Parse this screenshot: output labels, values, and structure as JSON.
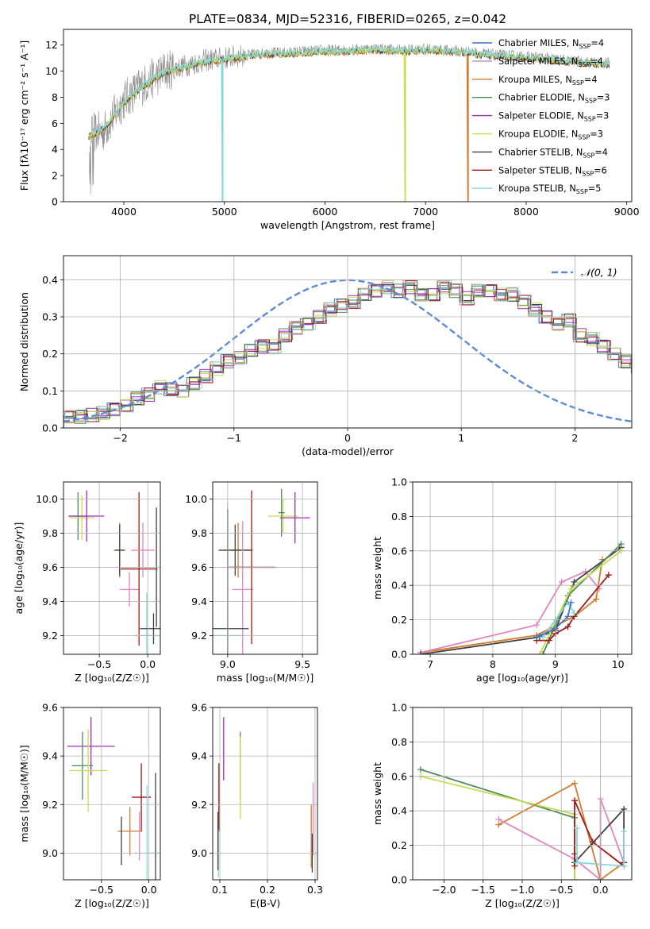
{
  "figure_title": "PLATE=0834, MJD=52316, FIBERID=0265, z=0.042",
  "colors": {
    "chabrier_miles": "#4472c4",
    "salpeter_miles": "#b48ccc",
    "kroupa_miles": "#d07c2c",
    "chabrier_elodie": "#4f8a5a",
    "salpeter_elodie": "#a12bbd",
    "kroupa_elodie": "#c8dc50",
    "chabrier_stelib": "#404040",
    "salpeter_stelib": "#a01818",
    "kroupa_stelib": "#86d8dc",
    "pink": "#e285c0",
    "data": "#8a8a8a",
    "normal_curve": "#5b8bd6",
    "grid": "#b0b0b0"
  },
  "chart_data": [
    {
      "id": "spectrum",
      "type": "line",
      "xlabel": "wavelength [Angstrom, rest frame]",
      "ylabel": "Flux [fλ10⁻¹⁷ erg cm⁻² s⁻¹ A⁻¹]",
      "xlim": [
        3400,
        9050
      ],
      "ylim": [
        0,
        13.2
      ],
      "xticks": [
        "4000",
        "5000",
        "6000",
        "7000",
        "8000",
        "9000"
      ],
      "yticks": [
        "0",
        "2",
        "4",
        "6",
        "8",
        "10",
        "12"
      ],
      "x": [
        3650,
        3800,
        4000,
        4200,
        4400,
        4600,
        4800,
        5000,
        5200,
        5400,
        5600,
        5800,
        6000,
        6200,
        6400,
        6600,
        6800,
        7000,
        7200,
        7400,
        7600,
        7800,
        8000,
        8200,
        8400,
        8600,
        8800
      ],
      "data_y": [
        5.2,
        5.4,
        7.8,
        9.0,
        10.0,
        10.4,
        10.8,
        11.0,
        11.2,
        11.4,
        11.4,
        11.5,
        11.6,
        11.6,
        11.7,
        11.7,
        11.6,
        11.7,
        11.6,
        11.5,
        11.3,
        11.2,
        11.1,
        11.0,
        10.8,
        10.7,
        10.6
      ],
      "model_y": [
        5.0,
        5.6,
        7.6,
        8.9,
        9.9,
        10.3,
        10.7,
        10.9,
        11.1,
        11.3,
        11.3,
        11.4,
        11.5,
        11.5,
        11.6,
        11.6,
        11.5,
        11.6,
        11.5,
        11.4,
        11.2,
        11.1,
        11.0,
        10.9,
        10.7,
        10.6,
        10.5
      ],
      "legend_loc": "right",
      "legend": [
        {
          "key": "chabrier_miles",
          "text": "Chabrier MILES, N",
          "sub": "SSP",
          "tail": "=4"
        },
        {
          "key": "salpeter_miles",
          "text": "Salpeter MILES, N",
          "sub": "SSP",
          "tail": "=4"
        },
        {
          "key": "kroupa_miles",
          "text": "Kroupa MILES, N",
          "sub": "SSP",
          "tail": "=4"
        },
        {
          "key": "chabrier_elodie",
          "text": "Chabrier ELODIE, N",
          "sub": "SSP",
          "tail": "=3"
        },
        {
          "key": "salpeter_elodie",
          "text": "Salpeter ELODIE, N",
          "sub": "SSP",
          "tail": "=3"
        },
        {
          "key": "kroupa_elodie",
          "text": "Kroupa ELODIE, N",
          "sub": "SSP",
          "tail": "=3"
        },
        {
          "key": "chabrier_stelib",
          "text": "Chabrier STELIB, N",
          "sub": "SSP",
          "tail": "=4"
        },
        {
          "key": "salpeter_stelib",
          "text": "Salpeter STELIB, N",
          "sub": "SSP",
          "tail": "=6"
        },
        {
          "key": "kroupa_stelib",
          "text": "Kroupa STELIB, N",
          "sub": "SSP",
          "tail": "=5"
        }
      ],
      "model_cutoffs": [
        {
          "key": "kroupa_stelib",
          "x": 4980
        },
        {
          "key": "kroupa_elodie",
          "x": 6800
        },
        {
          "key": "kroupa_miles",
          "x": 7420
        }
      ]
    },
    {
      "id": "residuals",
      "type": "histogram",
      "xlabel": "(data-model)/error",
      "ylabel": "Normed distribution",
      "xlim": [
        -2.5,
        2.5
      ],
      "ylim": [
        0,
        0.465
      ],
      "xticks": [
        "−2",
        "−1",
        "0",
        "1",
        "2"
      ],
      "yticks": [
        "0.0",
        "0.1",
        "0.2",
        "0.3",
        "0.4"
      ],
      "bin_width": 0.1,
      "bin_start": -2.5,
      "heights": [
        0.03,
        0.03,
        0.035,
        0.04,
        0.05,
        0.06,
        0.08,
        0.09,
        0.11,
        0.105,
        0.1,
        0.12,
        0.14,
        0.16,
        0.18,
        0.19,
        0.21,
        0.22,
        0.22,
        0.25,
        0.27,
        0.28,
        0.3,
        0.32,
        0.33,
        0.34,
        0.36,
        0.37,
        0.38,
        0.37,
        0.38,
        0.36,
        0.36,
        0.38,
        0.37,
        0.35,
        0.37,
        0.37,
        0.36,
        0.36,
        0.34,
        0.32,
        0.3,
        0.28,
        0.29,
        0.25,
        0.24,
        0.22,
        0.2,
        0.18,
        0.16,
        0.14,
        0.13,
        0.12,
        0.11,
        0.09,
        0.08,
        0.07,
        0.06,
        0.05,
        0.03,
        0.03,
        0.03
      ],
      "legend_text": "𝒩(0, 1)",
      "legend_loc": "upper right"
    },
    {
      "id": "age_vs_z",
      "type": "errorbar",
      "xlabel": "Z [log₁₀(Z/Z☉)]",
      "ylabel": "age  [log₁₀(age/yr)]",
      "xlim": [
        -0.87,
        0.13
      ],
      "ylim": [
        9.09,
        10.1
      ],
      "xticks": [
        {
          "v": -0.5,
          "t": "−0.5"
        },
        {
          "v": 0.0,
          "t": "0.0"
        }
      ],
      "yticks": [
        {
          "v": 9.2,
          "t": "9.2"
        },
        {
          "v": 9.4,
          "t": "9.4"
        },
        {
          "v": 9.6,
          "t": "9.6"
        },
        {
          "v": 9.8,
          "t": "9.8"
        },
        {
          "v": 10.0,
          "t": "10.0"
        }
      ],
      "points": [
        {
          "key": "chabrier_elodie",
          "x": -0.72,
          "xerr": 0.1,
          "y": 9.9,
          "yerr": 0.14
        },
        {
          "key": "kroupa_elodie",
          "x": -0.68,
          "xerr": 0.13,
          "y": 9.89,
          "yerr": 0.13
        },
        {
          "key": "salpeter_elodie",
          "x": -0.63,
          "xerr": 0.18,
          "y": 9.9,
          "yerr": 0.15
        },
        {
          "key": "kroupa_miles",
          "x": -0.29,
          "xerr": 0.06,
          "y": 9.7,
          "yerr": 0.16
        },
        {
          "key": "chabrier_stelib",
          "x": -0.29,
          "xerr": 0.05,
          "y": 9.7,
          "yerr": 0.15
        },
        {
          "key": "pink",
          "x": -0.19,
          "xerr": 0.1,
          "y": 9.47,
          "yerr": 0.1
        },
        {
          "key": "salpeter_stelib",
          "x": -0.09,
          "xerr": 0.19,
          "y": 9.59,
          "yerr": 0.45
        },
        {
          "key": "pink",
          "x": -0.05,
          "xerr": 0.12,
          "y": 9.7,
          "yerr": 0.16
        },
        {
          "key": "kroupa_stelib",
          "x": -0.01,
          "xerr": 0.13,
          "y": 9.2,
          "yerr": 0.25
        },
        {
          "key": "chabrier_stelib",
          "x": 0.06,
          "xerr": 0.14,
          "y": 9.24,
          "yerr": 0.09
        },
        {
          "key": "chabrier_stelib",
          "x": 0.09,
          "xerr": 0.0,
          "y": 9.6,
          "yerr": 0.35
        }
      ]
    },
    {
      "id": "age_vs_mass",
      "type": "errorbar",
      "xlabel": "mass [log₁₀(M/M☉)]",
      "ylabel": "",
      "xlim": [
        8.9,
        9.6
      ],
      "ylim": [
        9.09,
        10.1
      ],
      "xticks": [
        {
          "v": 9.0,
          "t": "9.0"
        },
        {
          "v": 9.5,
          "t": "9.5"
        }
      ],
      "yticks": [
        {
          "v": 9.2,
          "t": "9.2"
        },
        {
          "v": 9.4,
          "t": "9.4"
        },
        {
          "v": 9.6,
          "t": "9.6"
        },
        {
          "v": 9.8,
          "t": "9.8"
        },
        {
          "v": 10.0,
          "t": "10.0"
        }
      ],
      "points": [
        {
          "key": "kroupa_elodie",
          "x": 9.37,
          "xerr": 0.1,
          "y": 9.9,
          "yerr": 0.1
        },
        {
          "key": "chabrier_elodie",
          "x": 9.36,
          "xerr": 0.02,
          "y": 9.92,
          "yerr": 0.14
        },
        {
          "key": "salpeter_elodie",
          "x": 9.45,
          "xerr": 0.1,
          "y": 9.89,
          "yerr": 0.15
        },
        {
          "key": "kroupa_miles",
          "x": 9.07,
          "xerr": 0.1,
          "y": 9.7,
          "yerr": 0.16
        },
        {
          "key": "chabrier_stelib",
          "x": 9.05,
          "xerr": 0.11,
          "y": 9.7,
          "yerr": 0.15
        },
        {
          "key": "pink",
          "x": 9.1,
          "xerr": 0.07,
          "y": 9.47,
          "yerr": 0.4
        },
        {
          "key": "salpeter_stelib",
          "x": 9.16,
          "xerr": 0.16,
          "y": 9.6,
          "yerr": 0.45
        },
        {
          "key": "kroupa_stelib",
          "x": 9.0,
          "xerr": 0.11,
          "y": 9.2,
          "yerr": 0.78
        },
        {
          "key": "chabrier_stelib",
          "x": 9.0,
          "xerr": 0.14,
          "y": 9.24,
          "yerr": 0.7
        }
      ]
    },
    {
      "id": "mw_vs_age",
      "type": "line",
      "xlabel": "age  [log₁₀(age/yr)]",
      "ylabel": "mass weight",
      "xlim": [
        6.72,
        10.22
      ],
      "ylim": [
        0.0,
        1.0
      ],
      "xticks": [
        {
          "v": 7,
          "t": "7"
        },
        {
          "v": 8,
          "t": "8"
        },
        {
          "v": 9,
          "t": "9"
        },
        {
          "v": 10,
          "t": "10"
        }
      ],
      "yticks": [
        {
          "v": 0.0,
          "t": "0.0"
        },
        {
          "v": 0.2,
          "t": "0.2"
        },
        {
          "v": 0.4,
          "t": "0.4"
        },
        {
          "v": 0.6,
          "t": "0.6"
        },
        {
          "v": 0.8,
          "t": "0.8"
        },
        {
          "v": 1.0,
          "t": "1.0"
        }
      ],
      "series": [
        {
          "key": "kroupa_miles",
          "x": [
            6.85,
            8.7,
            9.3,
            9.65,
            9.75
          ],
          "y": [
            0.01,
            0.11,
            0.22,
            0.32,
            0.55
          ]
        },
        {
          "key": "pink",
          "x": [
            6.85,
            8.7,
            9.1,
            9.48,
            9.7
          ],
          "y": [
            0.01,
            0.17,
            0.42,
            0.48,
            0.38
          ]
        },
        {
          "key": "chabrier_stelib",
          "x": [
            6.85,
            8.75,
            9.0,
            9.3,
            10.05
          ],
          "y": [
            0.0,
            0.1,
            0.14,
            0.42,
            0.62
          ]
        },
        {
          "key": "chabrier_elodie",
          "x": [
            8.8,
            9.2,
            10.05
          ],
          "y": [
            0.0,
            0.34,
            0.64
          ]
        },
        {
          "key": "kroupa_elodie",
          "x": [
            8.75,
            9.25,
            10.05
          ],
          "y": [
            0.0,
            0.38,
            0.6
          ]
        },
        {
          "key": "salpeter_stelib",
          "x": [
            8.7,
            8.9,
            9.0,
            9.2,
            9.3,
            9.85
          ],
          "y": [
            0.08,
            0.08,
            0.12,
            0.16,
            0.22,
            0.46
          ]
        },
        {
          "key": "kroupa_stelib",
          "x": [
            8.8,
            9.0,
            9.2,
            9.3
          ],
          "y": [
            0.1,
            0.2,
            0.3,
            0.24
          ]
        },
        {
          "key": "chabrier_miles",
          "x": [
            8.7,
            9.0,
            9.2,
            9.25
          ],
          "y": [
            0.1,
            0.15,
            0.22,
            0.3
          ]
        }
      ]
    },
    {
      "id": "mass_vs_z",
      "type": "errorbar",
      "xlabel": "Z [log₁₀(Z/Z☉)]",
      "ylabel": "mass [log₁₀(M/M☉)]",
      "xlim": [
        -0.9,
        0.12
      ],
      "ylim": [
        8.89,
        9.6
      ],
      "xticks": [
        {
          "v": -0.5,
          "t": "−0.5"
        },
        {
          "v": 0.0,
          "t": "0.0"
        }
      ],
      "yticks": [
        {
          "v": 9.0,
          "t": "9.0"
        },
        {
          "v": 9.2,
          "t": "9.2"
        },
        {
          "v": 9.4,
          "t": "9.4"
        },
        {
          "v": 9.6,
          "t": "9.6"
        }
      ],
      "points": [
        {
          "key": "salpeter_elodie",
          "x": -0.61,
          "xerr": 0.25,
          "y": 9.44,
          "yerr": 0.12
        },
        {
          "key": "chabrier_elodie",
          "x": -0.7,
          "xerr": 0.11,
          "y": 9.36,
          "yerr": 0.14
        },
        {
          "key": "kroupa_elodie",
          "x": -0.64,
          "xerr": 0.2,
          "y": 9.34,
          "yerr": 0.17
        },
        {
          "key": "kroupa_miles",
          "x": -0.2,
          "xerr": 0.13,
          "y": 9.09,
          "yerr": 0.1
        },
        {
          "key": "chabrier_stelib",
          "x": -0.29,
          "xerr": 0.0,
          "y": 9.05,
          "yerr": 0.1
        },
        {
          "key": "pink",
          "x": -0.1,
          "xerr": 0.0,
          "y": 9.07,
          "yerr": 0.1
        },
        {
          "key": "salpeter_stelib",
          "x": -0.08,
          "xerr": 0.1,
          "y": 9.23,
          "yerr": 0.14
        },
        {
          "key": "kroupa_stelib",
          "x": -0.02,
          "xerr": 0.13,
          "y": 9.0,
          "yerr": 0.28
        },
        {
          "key": "chabrier_stelib",
          "x": 0.07,
          "xerr": 0.0,
          "y": 9.0,
          "yerr": 0.33
        }
      ]
    },
    {
      "id": "mass_vs_ebv",
      "type": "errorbar",
      "xlabel": "E(B-V)",
      "ylabel": "",
      "xlim": [
        0.085,
        0.305
      ],
      "ylim": [
        8.89,
        9.6
      ],
      "xticks": [
        {
          "v": 0.1,
          "t": "0.1"
        },
        {
          "v": 0.2,
          "t": "0.2"
        },
        {
          "v": 0.3,
          "t": "0.3"
        }
      ],
      "yticks": [
        {
          "v": 9.0,
          "t": "9.0"
        },
        {
          "v": 9.2,
          "t": "9.2"
        },
        {
          "v": 9.4,
          "t": "9.4"
        },
        {
          "v": 9.6,
          "t": "9.6"
        }
      ],
      "points": [
        {
          "key": "salpeter_stelib",
          "x": 0.098,
          "xerr": 0.0,
          "y": 9.23,
          "yerr": 0.14
        },
        {
          "key": "kroupa_stelib",
          "x": 0.097,
          "xerr": 0.0,
          "y": 9.0,
          "yerr": 0.1
        },
        {
          "key": "chabrier_stelib",
          "x": 0.096,
          "xerr": 0.0,
          "y": 9.05,
          "yerr": 0.12
        },
        {
          "key": "salpeter_elodie",
          "x": 0.108,
          "xerr": 0.0,
          "y": 9.43,
          "yerr": 0.13
        },
        {
          "key": "chabrier_elodie",
          "x": 0.143,
          "xerr": 0.0,
          "y": 9.36,
          "yerr": 0.14
        },
        {
          "key": "kroupa_elodie",
          "x": 0.143,
          "xerr": 0.0,
          "y": 9.31,
          "yerr": 0.17
        },
        {
          "key": "kroupa_miles",
          "x": 0.292,
          "xerr": 0.0,
          "y": 9.07,
          "yerr": 0.13
        },
        {
          "key": "pink",
          "x": 0.296,
          "xerr": 0.0,
          "y": 9.14,
          "yerr": 0.15
        },
        {
          "key": "chabrier_stelib",
          "x": 0.294,
          "xerr": 0.0,
          "y": 9.0,
          "yerr": 0.08
        }
      ]
    },
    {
      "id": "mw_vs_z",
      "type": "line",
      "xlabel": "Z [log₁₀(Z/Z☉)]",
      "ylabel": "mass weight",
      "xlim": [
        -2.4,
        0.4
      ],
      "ylim": [
        0.0,
        1.0
      ],
      "xticks": [
        {
          "v": -2.0,
          "t": "−2.0"
        },
        {
          "v": -1.5,
          "t": "−1.5"
        },
        {
          "v": -1.0,
          "t": "−1.0"
        },
        {
          "v": -0.5,
          "t": "−0.5"
        },
        {
          "v": 0.0,
          "t": "0.0"
        }
      ],
      "yticks": [
        {
          "v": 0.0,
          "t": "0.0"
        },
        {
          "v": 0.2,
          "t": "0.2"
        },
        {
          "v": 0.4,
          "t": "0.4"
        },
        {
          "v": 0.6,
          "t": "0.6"
        },
        {
          "v": 0.8,
          "t": "0.8"
        },
        {
          "v": 1.0,
          "t": "1.0"
        }
      ],
      "series": [
        {
          "key": "chabrier_elodie",
          "x": [
            -2.3,
            -0.33,
            -0.33
          ],
          "y": [
            0.64,
            0.36,
            0.0
          ]
        },
        {
          "key": "kroupa_elodie",
          "x": [
            -2.3,
            -0.33,
            -0.33
          ],
          "y": [
            0.6,
            0.38,
            0.0
          ]
        },
        {
          "key": "kroupa_miles",
          "x": [
            -1.3,
            -0.33,
            0.0,
            0.3
          ],
          "y": [
            0.32,
            0.56,
            0.0,
            0.1
          ]
        },
        {
          "key": "pink",
          "x": [
            -1.3,
            -0.33,
            0.0,
            0.0,
            0.3
          ],
          "y": [
            0.35,
            0.12,
            0.0,
            0.47,
            0.1
          ]
        },
        {
          "key": "salpeter_stelib",
          "x": [
            -0.33,
            -0.33,
            -0.33,
            -0.1,
            0.3
          ],
          "y": [
            0.08,
            0.15,
            0.46,
            0.22,
            0.08
          ]
        },
        {
          "key": "chabrier_stelib",
          "x": [
            -0.33,
            0.3,
            0.3
          ],
          "y": [
            0.1,
            0.41,
            0.1
          ]
        },
        {
          "key": "kroupa_stelib",
          "x": [
            -0.3,
            -0.3,
            0.3,
            0.3
          ],
          "y": [
            0.3,
            0.1,
            0.08,
            0.28
          ]
        }
      ]
    }
  ]
}
